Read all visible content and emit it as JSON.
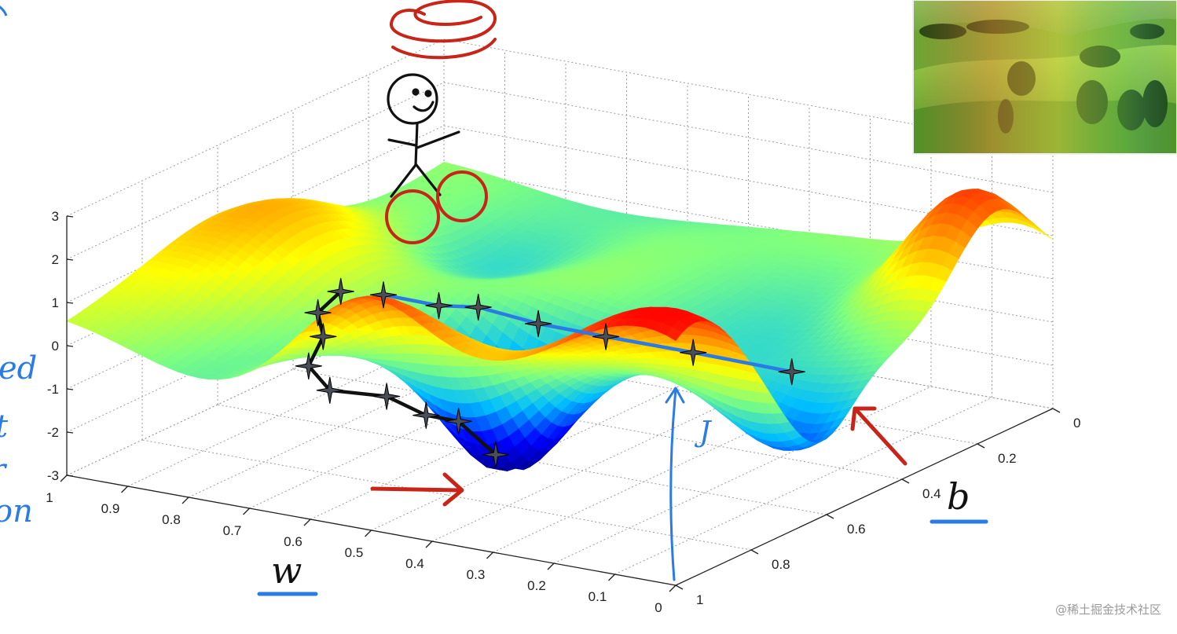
{
  "chart_data": {
    "type": "surface",
    "title": "",
    "xlabel": "w",
    "ylabel": "b",
    "zlabel": "J",
    "x_ticks": [
      "1",
      "0.9",
      "0.8",
      "0.7",
      "0.6",
      "0.5",
      "0.4",
      "0.3",
      "0.2",
      "0.1",
      "0"
    ],
    "y_ticks": [
      "0",
      "0.2",
      "0.4",
      "0.6",
      "0.8",
      "1"
    ],
    "z_ticks": [
      "3",
      "2",
      "1",
      "0",
      "-1",
      "-2",
      "-3"
    ],
    "xlim": [
      0,
      1
    ],
    "ylim": [
      0,
      1
    ],
    "zlim": [
      -3,
      3
    ],
    "grid": true,
    "colormap": [
      "#00008b",
      "#0000ff",
      "#00bfff",
      "#7fff7f",
      "#ffff00",
      "#ff7f00",
      "#ff0000"
    ],
    "paths": [
      {
        "color": "#111111",
        "points": [
          {
            "w": 0.55,
            "b": 0.0,
            "J": 2.4
          },
          {
            "w": 0.6,
            "b": 0.02,
            "J": 1.7
          },
          {
            "w": 0.61,
            "b": 0.05,
            "J": 1.0
          },
          {
            "w": 0.64,
            "b": 0.06,
            "J": 0.2
          },
          {
            "w": 0.63,
            "b": 0.1,
            "J": -0.5
          },
          {
            "w": 0.58,
            "b": 0.17,
            "J": -0.8
          },
          {
            "w": 0.54,
            "b": 0.21,
            "J": -1.3
          },
          {
            "w": 0.53,
            "b": 0.28,
            "J": -1.7
          },
          {
            "w": 0.5,
            "b": 0.33,
            "J": -2.6
          }
        ]
      },
      {
        "color": "#2a7be4",
        "points": [
          {
            "w": 0.48,
            "b": 0.0,
            "J": 2.5
          },
          {
            "w": 0.42,
            "b": 0.05,
            "J": 2.2
          },
          {
            "w": 0.38,
            "b": 0.09,
            "J": 2.1
          },
          {
            "w": 0.3,
            "b": 0.12,
            "J": 1.8
          },
          {
            "w": 0.22,
            "b": 0.17,
            "J": 1.5
          },
          {
            "w": 0.12,
            "b": 0.24,
            "J": 1.1
          },
          {
            "w": 0.02,
            "b": 0.34,
            "J": 0.5
          }
        ]
      }
    ],
    "annotation_colors": {
      "ink": "#111111",
      "red": "#c82418",
      "blue": "#2a7be4"
    },
    "side_text": [
      "ed",
      "t",
      "r",
      "on"
    ],
    "watermark": "@稀土掘金技术社区"
  }
}
